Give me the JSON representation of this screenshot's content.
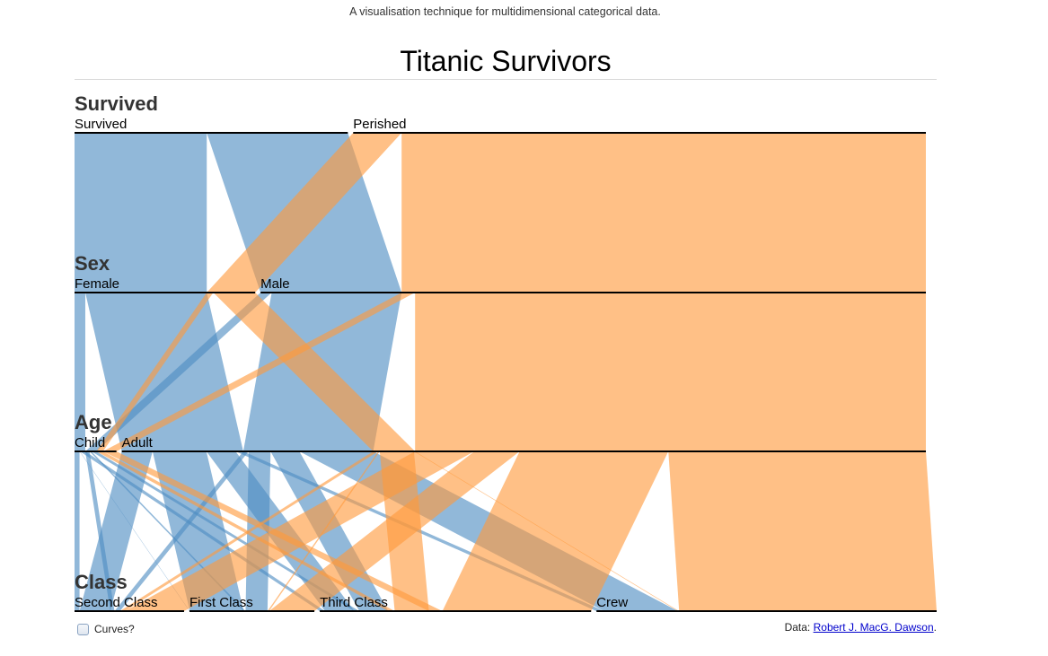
{
  "header": {
    "subtitle": "A visualisation technique for multidimensional categorical data.",
    "title": "Titanic Survivors"
  },
  "controls": {
    "curves_label": "Curves?",
    "curves_checked": false
  },
  "footer": {
    "data_prefix": "Data:",
    "data_link": "Robert J. MacG. Dawson",
    "data_suffix": "."
  },
  "colors": {
    "survived": "#4e8cc2",
    "perished": "#ff9a3c",
    "axis": "#000000"
  },
  "chart_data": {
    "type": "parallel-sets",
    "title": "Titanic Survivors",
    "dimensions": [
      {
        "name": "Survived",
        "categories": [
          "Survived",
          "Perished"
        ]
      },
      {
        "name": "Sex",
        "categories": [
          "Female",
          "Male"
        ]
      },
      {
        "name": "Age",
        "categories": [
          "Child",
          "Adult"
        ]
      },
      {
        "name": "Class",
        "categories": [
          "Second Class",
          "First Class",
          "Third Class",
          "Crew"
        ]
      }
    ],
    "color_by": "Survived",
    "records": [
      {
        "Survived": "Survived",
        "Sex": "Female",
        "Age": "Child",
        "Class": "Second Class",
        "count": 13
      },
      {
        "Survived": "Survived",
        "Sex": "Female",
        "Age": "Child",
        "Class": "First Class",
        "count": 1
      },
      {
        "Survived": "Survived",
        "Sex": "Female",
        "Age": "Child",
        "Class": "Third Class",
        "count": 14
      },
      {
        "Survived": "Survived",
        "Sex": "Female",
        "Age": "Adult",
        "Class": "Second Class",
        "count": 80
      },
      {
        "Survived": "Survived",
        "Sex": "Female",
        "Age": "Adult",
        "Class": "First Class",
        "count": 140
      },
      {
        "Survived": "Survived",
        "Sex": "Female",
        "Age": "Adult",
        "Class": "Third Class",
        "count": 76
      },
      {
        "Survived": "Survived",
        "Sex": "Female",
        "Age": "Adult",
        "Class": "Crew",
        "count": 20
      },
      {
        "Survived": "Survived",
        "Sex": "Male",
        "Age": "Child",
        "Class": "Second Class",
        "count": 11
      },
      {
        "Survived": "Survived",
        "Sex": "Male",
        "Age": "Child",
        "Class": "First Class",
        "count": 5
      },
      {
        "Survived": "Survived",
        "Sex": "Male",
        "Age": "Child",
        "Class": "Third Class",
        "count": 13
      },
      {
        "Survived": "Survived",
        "Sex": "Male",
        "Age": "Adult",
        "Class": "Second Class",
        "count": 14
      },
      {
        "Survived": "Survived",
        "Sex": "Male",
        "Age": "Adult",
        "Class": "First Class",
        "count": 57
      },
      {
        "Survived": "Survived",
        "Sex": "Male",
        "Age": "Adult",
        "Class": "Third Class",
        "count": 75
      },
      {
        "Survived": "Survived",
        "Sex": "Male",
        "Age": "Adult",
        "Class": "Crew",
        "count": 192
      },
      {
        "Survived": "Perished",
        "Sex": "Female",
        "Age": "Child",
        "Class": "Third Class",
        "count": 17
      },
      {
        "Survived": "Perished",
        "Sex": "Female",
        "Age": "Adult",
        "Class": "Second Class",
        "count": 13
      },
      {
        "Survived": "Perished",
        "Sex": "Female",
        "Age": "Adult",
        "Class": "First Class",
        "count": 4
      },
      {
        "Survived": "Perished",
        "Sex": "Female",
        "Age": "Adult",
        "Class": "Third Class",
        "count": 89
      },
      {
        "Survived": "Perished",
        "Sex": "Female",
        "Age": "Adult",
        "Class": "Crew",
        "count": 3
      },
      {
        "Survived": "Perished",
        "Sex": "Male",
        "Age": "Child",
        "Class": "Third Class",
        "count": 35
      },
      {
        "Survived": "Perished",
        "Sex": "Male",
        "Age": "Adult",
        "Class": "Second Class",
        "count": 154
      },
      {
        "Survived": "Perished",
        "Sex": "Male",
        "Age": "Adult",
        "Class": "First Class",
        "count": 118
      },
      {
        "Survived": "Perished",
        "Sex": "Male",
        "Age": "Adult",
        "Class": "Third Class",
        "count": 387
      },
      {
        "Survived": "Perished",
        "Sex": "Male",
        "Age": "Adult",
        "Class": "Crew",
        "count": 670
      }
    ]
  }
}
